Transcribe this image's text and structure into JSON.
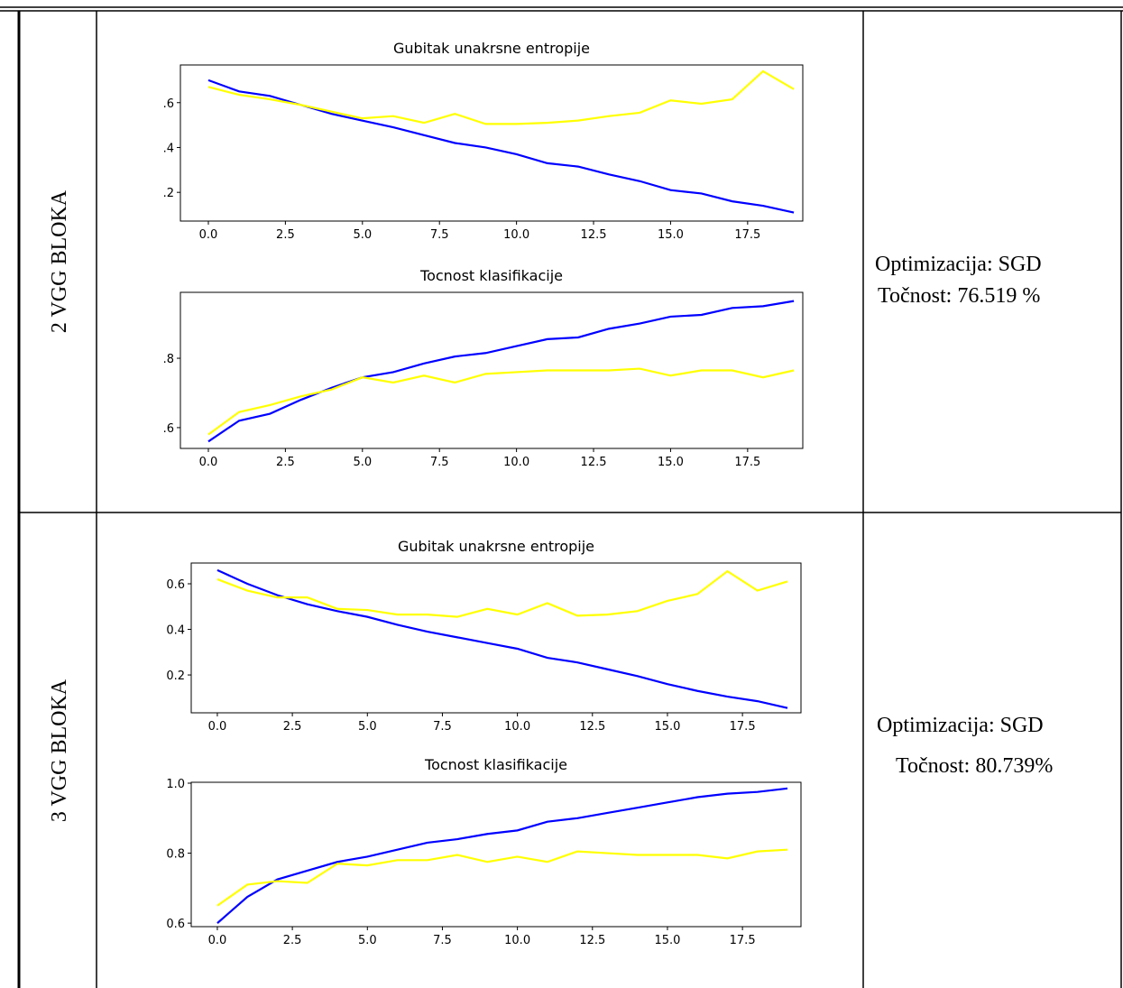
{
  "table": {
    "rows": [
      {
        "label": "2 VGG BLOKA",
        "charts": [
          {
            "type": "line",
            "title": "Gubitak unakrsne entropije",
            "x": [
              0,
              1,
              2,
              3,
              4,
              5,
              6,
              7,
              8,
              9,
              10,
              11,
              12,
              13,
              14,
              15,
              16,
              17,
              18,
              19
            ],
            "series": [
              {
                "color": "#0000ff",
                "values": [
                  0.7,
                  0.65,
                  0.63,
                  0.59,
                  0.55,
                  0.52,
                  0.49,
                  0.455,
                  0.42,
                  0.4,
                  0.37,
                  0.33,
                  0.315,
                  0.28,
                  0.25,
                  0.21,
                  0.195,
                  0.16,
                  0.14,
                  0.11
                ]
              },
              {
                "color": "#ffff00",
                "values": [
                  0.67,
                  0.635,
                  0.615,
                  0.59,
                  0.56,
                  0.53,
                  0.54,
                  0.51,
                  0.55,
                  0.505,
                  0.505,
                  0.51,
                  0.52,
                  0.54,
                  0.555,
                  0.61,
                  0.595,
                  0.615,
                  0.74,
                  0.66
                ]
              }
            ],
            "xlim": [
              -0.907,
              19.29
            ],
            "ylim": [
              0.072,
              0.768
            ],
            "xticks": [
              {
                "value": 0,
                "label": "0.0"
              },
              2.5,
              {
                "value": 5,
                "label": "5.0"
              },
              7.5,
              {
                "value": 10,
                "label": "10.0"
              },
              12.5,
              {
                "value": 15,
                "label": "15.0"
              },
              17.5
            ],
            "yticks": [
              {
                "value": 0.2,
                "label": ".2"
              },
              {
                "value": 0.4,
                "label": ".4"
              },
              {
                "value": 0.6,
                "label": ".6"
              }
            ]
          },
          {
            "type": "line",
            "title": "Tocnost klasifikacije",
            "x": [
              0,
              1,
              2,
              3,
              4,
              5,
              6,
              7,
              8,
              9,
              10,
              11,
              12,
              13,
              14,
              15,
              16,
              17,
              18,
              19
            ],
            "series": [
              {
                "color": "#0000ff",
                "values": [
                  0.56,
                  0.62,
                  0.64,
                  0.68,
                  0.715,
                  0.745,
                  0.76,
                  0.785,
                  0.805,
                  0.815,
                  0.835,
                  0.855,
                  0.86,
                  0.885,
                  0.9,
                  0.92,
                  0.925,
                  0.945,
                  0.95,
                  0.965
                ]
              },
              {
                "color": "#ffff00",
                "values": [
                  0.58,
                  0.645,
                  0.665,
                  0.69,
                  0.71,
                  0.745,
                  0.73,
                  0.75,
                  0.73,
                  0.755,
                  0.76,
                  0.765,
                  0.765,
                  0.765,
                  0.77,
                  0.75,
                  0.765,
                  0.765,
                  0.745,
                  0.765
                ]
              }
            ],
            "xlim": [
              -0.907,
              19.29
            ],
            "ylim": [
              0.54,
              0.99
            ],
            "xticks": [
              {
                "value": 0,
                "label": "0.0"
              },
              2.5,
              {
                "value": 5,
                "label": "5.0"
              },
              7.5,
              {
                "value": 10,
                "label": "10.0"
              },
              12.5,
              {
                "value": 15,
                "label": "15.0"
              },
              17.5
            ],
            "yticks": [
              {
                "value": 0.6,
                "label": ".6"
              },
              {
                "value": 0.8,
                "label": ".8"
              }
            ]
          }
        ],
        "text": [
          "Optimizacija: SGD",
          "Točnost: 76.519 %"
        ]
      },
      {
        "label": "3 VGG BLOKA",
        "charts": [
          {
            "type": "line",
            "title": "Gubitak unakrsne entropije",
            "x": [
              0,
              1,
              2,
              3,
              4,
              5,
              6,
              7,
              8,
              9,
              10,
              11,
              12,
              13,
              14,
              15,
              16,
              17,
              18,
              19
            ],
            "series": [
              {
                "color": "#0000ff",
                "values": [
                  0.66,
                  0.6,
                  0.55,
                  0.51,
                  0.48,
                  0.455,
                  0.42,
                  0.39,
                  0.365,
                  0.34,
                  0.315,
                  0.275,
                  0.255,
                  0.225,
                  0.195,
                  0.16,
                  0.13,
                  0.105,
                  0.085,
                  0.055
                ]
              },
              {
                "color": "#ffff00",
                "values": [
                  0.62,
                  0.57,
                  0.54,
                  0.54,
                  0.49,
                  0.485,
                  0.465,
                  0.465,
                  0.455,
                  0.49,
                  0.465,
                  0.515,
                  0.46,
                  0.465,
                  0.48,
                  0.525,
                  0.555,
                  0.655,
                  0.57,
                  0.61
                ]
              }
            ],
            "xlim": [
              -0.87,
              19.45
            ],
            "ylim": [
              0.034,
              0.691
            ],
            "xticks": [
              {
                "value": 0,
                "label": "0.0"
              },
              2.5,
              {
                "value": 5,
                "label": "5.0"
              },
              7.5,
              {
                "value": 10,
                "label": "10.0"
              },
              12.5,
              {
                "value": 15,
                "label": "15.0"
              },
              17.5
            ],
            "yticks": [
              0.2,
              0.4,
              0.6
            ]
          },
          {
            "type": "line",
            "title": "Tocnost klasifikacije",
            "x": [
              0,
              1,
              2,
              3,
              4,
              5,
              6,
              7,
              8,
              9,
              10,
              11,
              12,
              13,
              14,
              15,
              16,
              17,
              18,
              19
            ],
            "series": [
              {
                "color": "#0000ff",
                "values": [
                  0.6,
                  0.675,
                  0.725,
                  0.75,
                  0.775,
                  0.79,
                  0.81,
                  0.83,
                  0.84,
                  0.855,
                  0.865,
                  0.89,
                  0.9,
                  0.915,
                  0.93,
                  0.945,
                  0.96,
                  0.97,
                  0.975,
                  0.985
                ]
              },
              {
                "color": "#ffff00",
                "values": [
                  0.65,
                  0.71,
                  0.72,
                  0.715,
                  0.77,
                  0.765,
                  0.78,
                  0.78,
                  0.795,
                  0.775,
                  0.79,
                  0.775,
                  0.805,
                  0.8,
                  0.795,
                  0.795,
                  0.795,
                  0.785,
                  0.805,
                  0.81
                ]
              }
            ],
            "xlim": [
              -0.87,
              19.45
            ],
            "ylim": [
              0.59,
              1.0026
            ],
            "xticks": [
              {
                "value": 0,
                "label": "0.0"
              },
              2.5,
              {
                "value": 5,
                "label": "5.0"
              },
              7.5,
              {
                "value": 10,
                "label": "10.0"
              },
              12.5,
              {
                "value": 15,
                "label": "15.0"
              },
              17.5
            ],
            "yticks": [
              0.6,
              0.8,
              {
                "value": 1.0,
                "label": "1.0"
              }
            ]
          }
        ],
        "text": [
          "Optimizacija: SGD",
          "Točnost: 80.739%"
        ]
      }
    ]
  }
}
